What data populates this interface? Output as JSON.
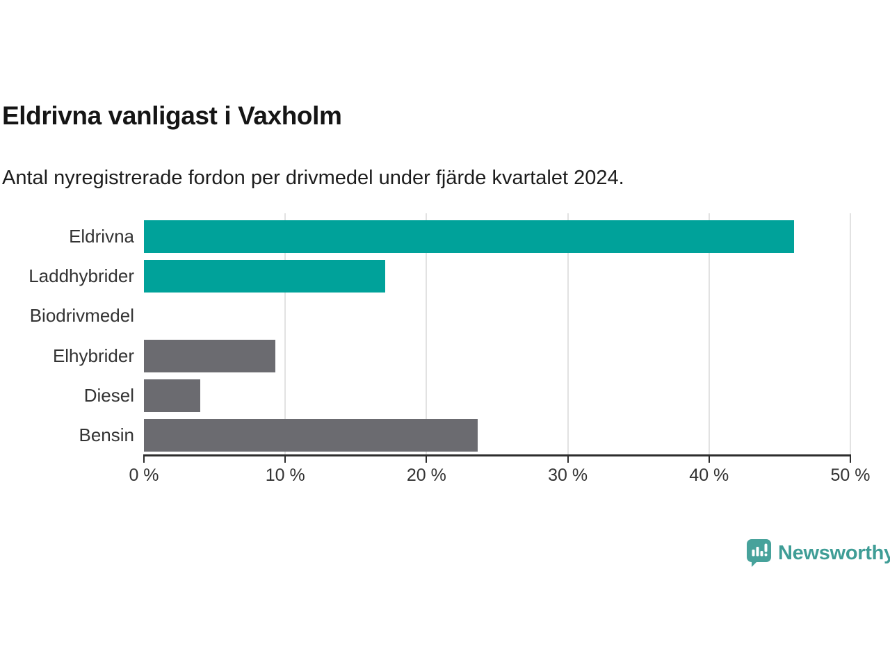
{
  "header": {
    "title": "Eldrivna vanligast i Vaxholm",
    "subtitle": "Antal nyregistrerade fordon per drivmedel under fjärde kvartalet 2024."
  },
  "chart_data": {
    "type": "bar",
    "orientation": "horizontal",
    "title": "Eldrivna vanligast i Vaxholm",
    "subtitle": "Antal nyregistrerade fordon per drivmedel under fjärde kvartalet 2024.",
    "categories": [
      "Eldrivna",
      "Laddhybrider",
      "Biodrivmedel",
      "Elhybrider",
      "Diesel",
      "Bensin"
    ],
    "values": [
      46,
      17.1,
      0,
      9.3,
      4,
      23.6
    ],
    "unit": "%",
    "xlim": [
      0,
      50
    ],
    "x_tick_values": [
      0,
      10,
      20,
      30,
      40,
      50
    ],
    "x_ticks": [
      "0 %",
      "10 %",
      "20 %",
      "30 %",
      "40 %",
      "50 %"
    ],
    "grid": "vertical",
    "legend": "none",
    "bar_colors": [
      "#00a29a",
      "#00a29a",
      "#6b6b70",
      "#6b6b70",
      "#6b6b70",
      "#6b6b70"
    ]
  },
  "colors": {
    "accent_teal": "#00a29a",
    "neutral_gray": "#6b6b70",
    "gridline": "#e2e2e2",
    "axis": "#2d2d2d",
    "text": "#333333",
    "brand_teal": "#3f9d96",
    "brand_icon_teal": "#47a29b"
  },
  "footer": {
    "brand": "Newsworthy",
    "brand_icon": "bar-chart-speech-bubble-icon"
  }
}
